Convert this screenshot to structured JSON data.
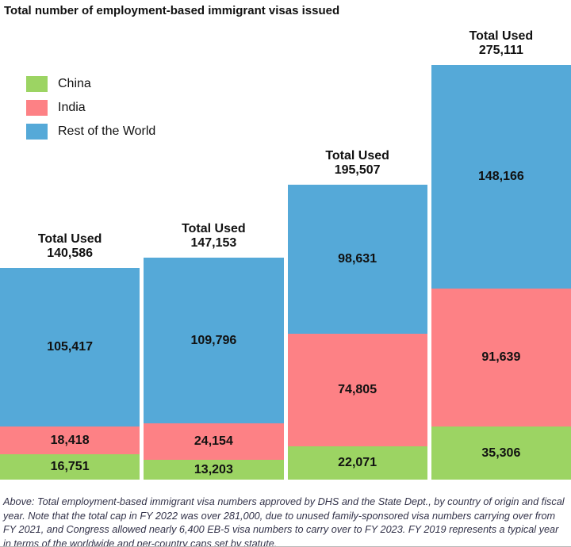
{
  "title": "Total number of employment-based immigrant visas issued",
  "chart_data": {
    "type": "bar",
    "stacked": true,
    "title": "Total number of employment-based immigrant visas issued",
    "total_label": "Total Used",
    "categories": [
      "",
      "",
      "",
      ""
    ],
    "categories_visible": false,
    "totals": [
      140586,
      147153,
      195507,
      275111
    ],
    "series": [
      {
        "name": "China",
        "color": "#9CD463",
        "values": [
          16751,
          13203,
          22071,
          35306
        ]
      },
      {
        "name": "India",
        "color": "#FD8185",
        "values": [
          18418,
          24154,
          74805,
          91639
        ]
      },
      {
        "name": "Rest of the World",
        "color": "#55A9D8",
        "values": [
          105417,
          109796,
          98631,
          148166
        ]
      }
    ],
    "stack_order_bottom_to_top": [
      "China",
      "India",
      "Rest of the World"
    ],
    "legend_position": "top-left",
    "axes": {
      "x_axis_visible": false,
      "y_axis_visible": false,
      "grid": false
    },
    "value_label_format": "#,###"
  },
  "footnote": "Above: Total employment-based immigrant visa numbers approved by DHS and the State Dept., by country of origin and fiscal year. Note that the total cap in FY 2022 was over 281,000, due to unused family-sponsored visa numbers carrying over from FY 2021, and Congress allowed nearly 6,400 EB-5 visa numbers to carry over to FY 2023. FY 2019 represents a typical year in terms of the worldwide and per-country caps set by statute."
}
